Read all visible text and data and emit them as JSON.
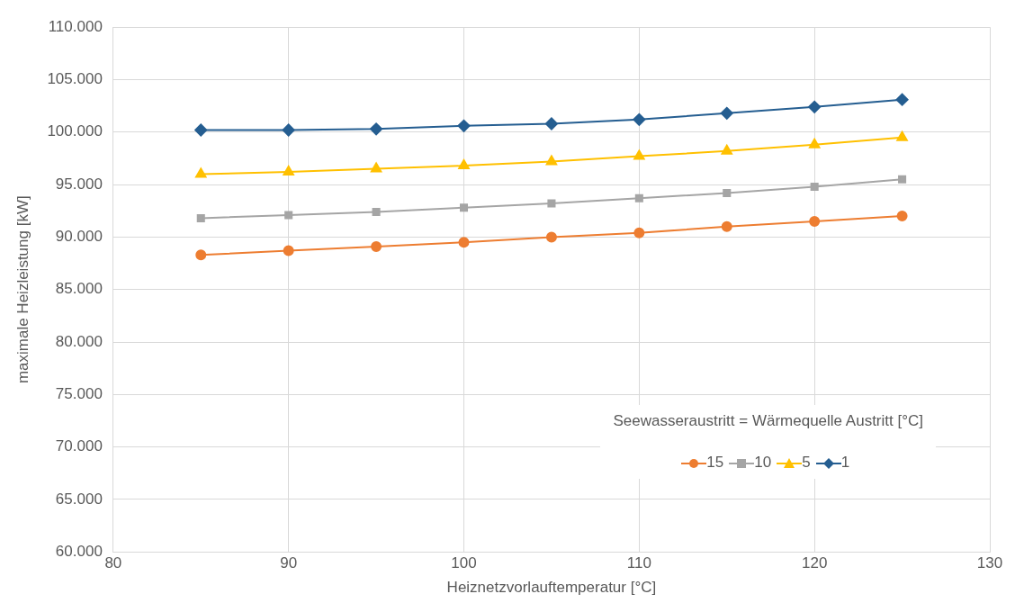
{
  "chart_data": {
    "type": "line",
    "xlabel": "Heiznetzvorlauftemperatur [°C]",
    "ylabel": "maximale Heizleistung [kW]",
    "legend_title": "Seewasseraustritt = Wärmequelle Austritt [°C]",
    "legend": "bottom right",
    "grid": true,
    "line_style": "solid",
    "x": [
      85,
      90,
      95,
      100,
      105,
      110,
      115,
      120,
      125
    ],
    "xlim": [
      80,
      130
    ],
    "xticks": [
      80,
      90,
      100,
      110,
      120,
      130
    ],
    "ylim": [
      60000,
      110000
    ],
    "yticks": [
      {
        "value": 60000,
        "label": "60.000"
      },
      {
        "value": 65000,
        "label": "65.000"
      },
      {
        "value": 70000,
        "label": "70.000"
      },
      {
        "value": 75000,
        "label": "75.000"
      },
      {
        "value": 80000,
        "label": "80.000"
      },
      {
        "value": 85000,
        "label": "85.000"
      },
      {
        "value": 90000,
        "label": "90.000"
      },
      {
        "value": 95000,
        "label": "95.000"
      },
      {
        "value": 100000,
        "label": "100.000"
      },
      {
        "value": 105000,
        "label": "105.000"
      },
      {
        "value": 110000,
        "label": "110.000"
      }
    ],
    "series": [
      {
        "name": "15",
        "color": "#ed7d31",
        "marker": "circle",
        "values": [
          88300,
          88700,
          89100,
          89500,
          90000,
          90400,
          91000,
          91500,
          92000
        ]
      },
      {
        "name": "10",
        "color": "#a5a5a5",
        "marker": "square",
        "values": [
          91800,
          92100,
          92400,
          92800,
          93200,
          93700,
          94200,
          94800,
          95500
        ]
      },
      {
        "name": "5",
        "color": "#ffc000",
        "marker": "triangle",
        "values": [
          96000,
          96200,
          96500,
          96800,
          97200,
          97700,
          98200,
          98800,
          99500
        ]
      },
      {
        "name": "1",
        "color": "#255e91",
        "marker": "diamond",
        "values": [
          100200,
          100200,
          100300,
          100600,
          100800,
          101200,
          101800,
          102400,
          103100
        ]
      }
    ]
  }
}
